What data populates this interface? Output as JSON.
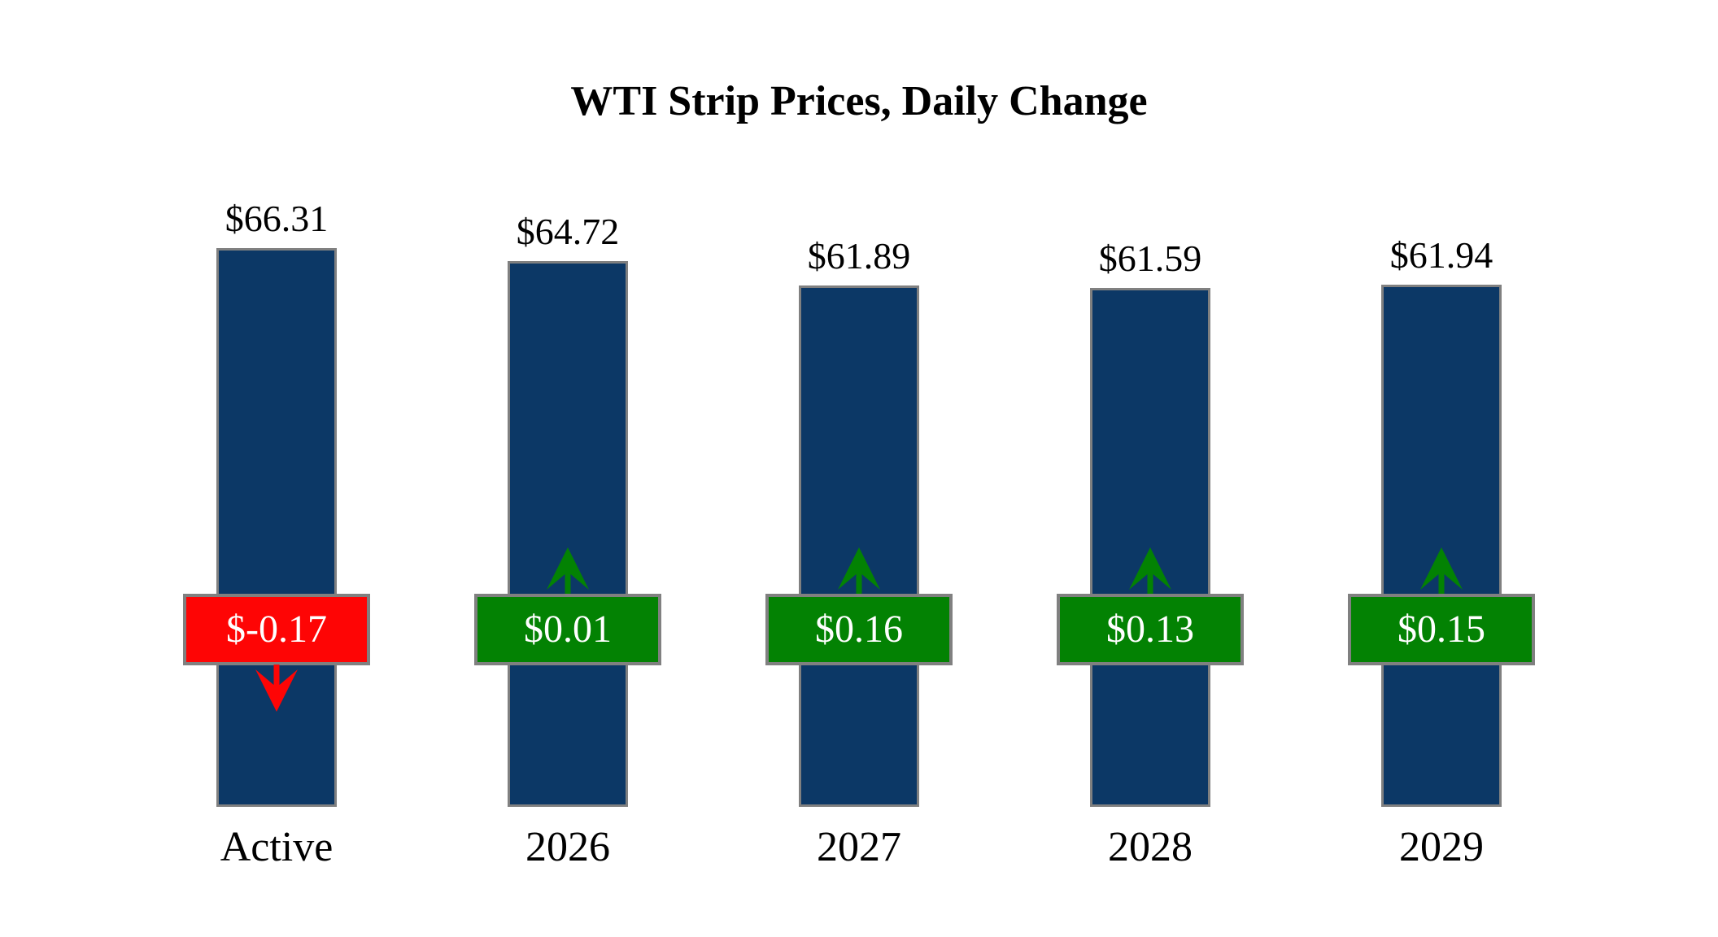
{
  "title": "WTI Strip Prices, Daily Change",
  "chart_data": {
    "type": "bar",
    "title": "WTI Strip Prices, Daily Change",
    "categories": [
      "Active",
      "2026",
      "2027",
      "2028",
      "2029"
    ],
    "series": [
      {
        "name": "strip_price",
        "values": [
          66.31,
          64.72,
          61.89,
          61.59,
          61.94
        ]
      },
      {
        "name": "daily_change",
        "values": [
          -0.17,
          0.01,
          0.16,
          0.13,
          0.15
        ]
      }
    ],
    "ylim": [
      0,
      66.31
    ],
    "xlabel": "",
    "ylabel": "",
    "grid": false,
    "legend_position": "none",
    "bars": [
      {
        "category": "Active",
        "price_label": "$66.31",
        "change_label": "$-0.17",
        "direction": "down"
      },
      {
        "category": "2026",
        "price_label": "$64.72",
        "change_label": "$0.01",
        "direction": "up"
      },
      {
        "category": "2027",
        "price_label": "$61.89",
        "change_label": "$0.16",
        "direction": "up"
      },
      {
        "category": "2028",
        "price_label": "$61.59",
        "change_label": "$0.13",
        "direction": "up"
      },
      {
        "category": "2029",
        "price_label": "$61.94",
        "change_label": "$0.15",
        "direction": "up"
      }
    ]
  },
  "colors": {
    "bar_fill": "#0C3866",
    "positive": "#038203",
    "negative": "#FE0505",
    "border_gray": "#808080",
    "badge_text": "#FFFFFF",
    "text": "#000000"
  }
}
